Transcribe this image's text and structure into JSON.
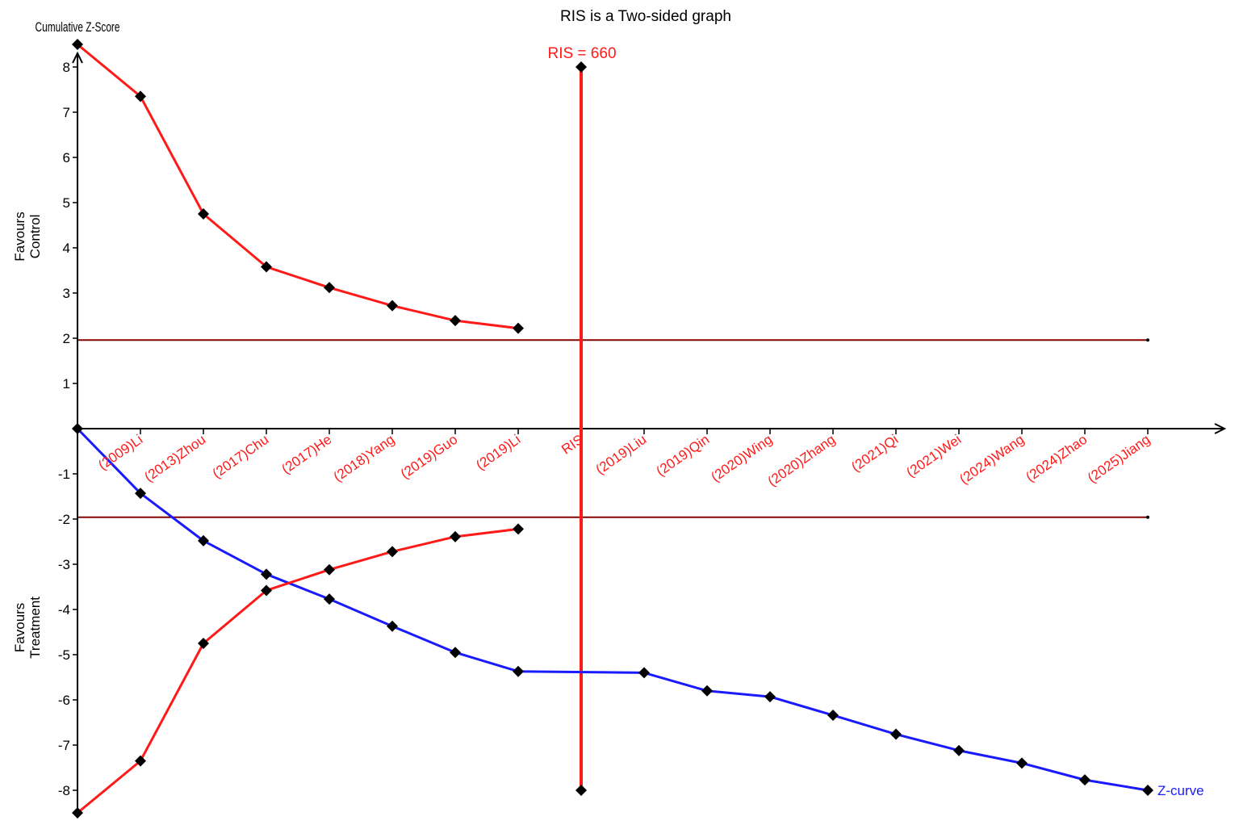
{
  "chart_data": {
    "type": "line",
    "title": "RIS is a Two-sided graph",
    "ylabel": "Cumulative Z-Score",
    "ylabel_positive": "Favours Control",
    "ylabel_negative": "Favours Treatment",
    "ylim": [
      -8.5,
      8.5
    ],
    "y_ticks": [
      -8,
      -7,
      -6,
      -5,
      -4,
      -3,
      -2,
      -1,
      1,
      2,
      3,
      4,
      5,
      6,
      7,
      8
    ],
    "categories": [
      "(2009)Li",
      "(2013)Zhou",
      "(2017)Chu",
      "(2017)He",
      "(2018)Yang",
      "(2019)Guo",
      "(2019)Li",
      "RIS",
      "(2019)Liu",
      "(2019)Qin",
      "(2020)Wing",
      "(2020)Zhang",
      "(2021)Qi",
      "(2021)Wei",
      "(2024)Wang",
      "(2024)Zhao",
      "(2025)Jiang"
    ],
    "ris_label": "RIS = 660",
    "ris_range": [
      -8,
      8
    ],
    "thresholds": [
      1.96,
      -1.96
    ],
    "series": [
      {
        "name": "Z-curve",
        "color": "#1a1aff",
        "x": [
          0,
          1,
          2,
          3,
          4,
          5,
          6,
          7,
          9,
          10,
          11,
          12,
          13,
          14,
          15,
          16,
          17
        ],
        "y": [
          0,
          -1.43,
          -2.48,
          -3.22,
          -3.77,
          -4.37,
          -4.95,
          -5.37,
          -5.4,
          -5.8,
          -5.93,
          -6.34,
          -6.76,
          -7.12,
          -7.4,
          -7.77,
          -8
        ]
      },
      {
        "color": "#ff1a1a",
        "x": [
          0,
          1,
          2,
          3,
          4,
          5,
          6,
          7
        ],
        "y": [
          8.5,
          7.35,
          4.75,
          3.58,
          3.12,
          2.72,
          2.39,
          2.22
        ]
      },
      {
        "color": "#ff1a1a",
        "x": [
          0,
          1,
          2,
          3,
          4,
          5,
          6,
          7
        ],
        "y": [
          -8.5,
          -7.35,
          -4.75,
          -3.58,
          -3.12,
          -2.72,
          -2.39,
          -2.22
        ]
      }
    ],
    "colors": {
      "boundary": "#ff1a1a",
      "threshold": "#8b0000",
      "zcurve": "#1a1aff",
      "axis": "#000000"
    }
  }
}
